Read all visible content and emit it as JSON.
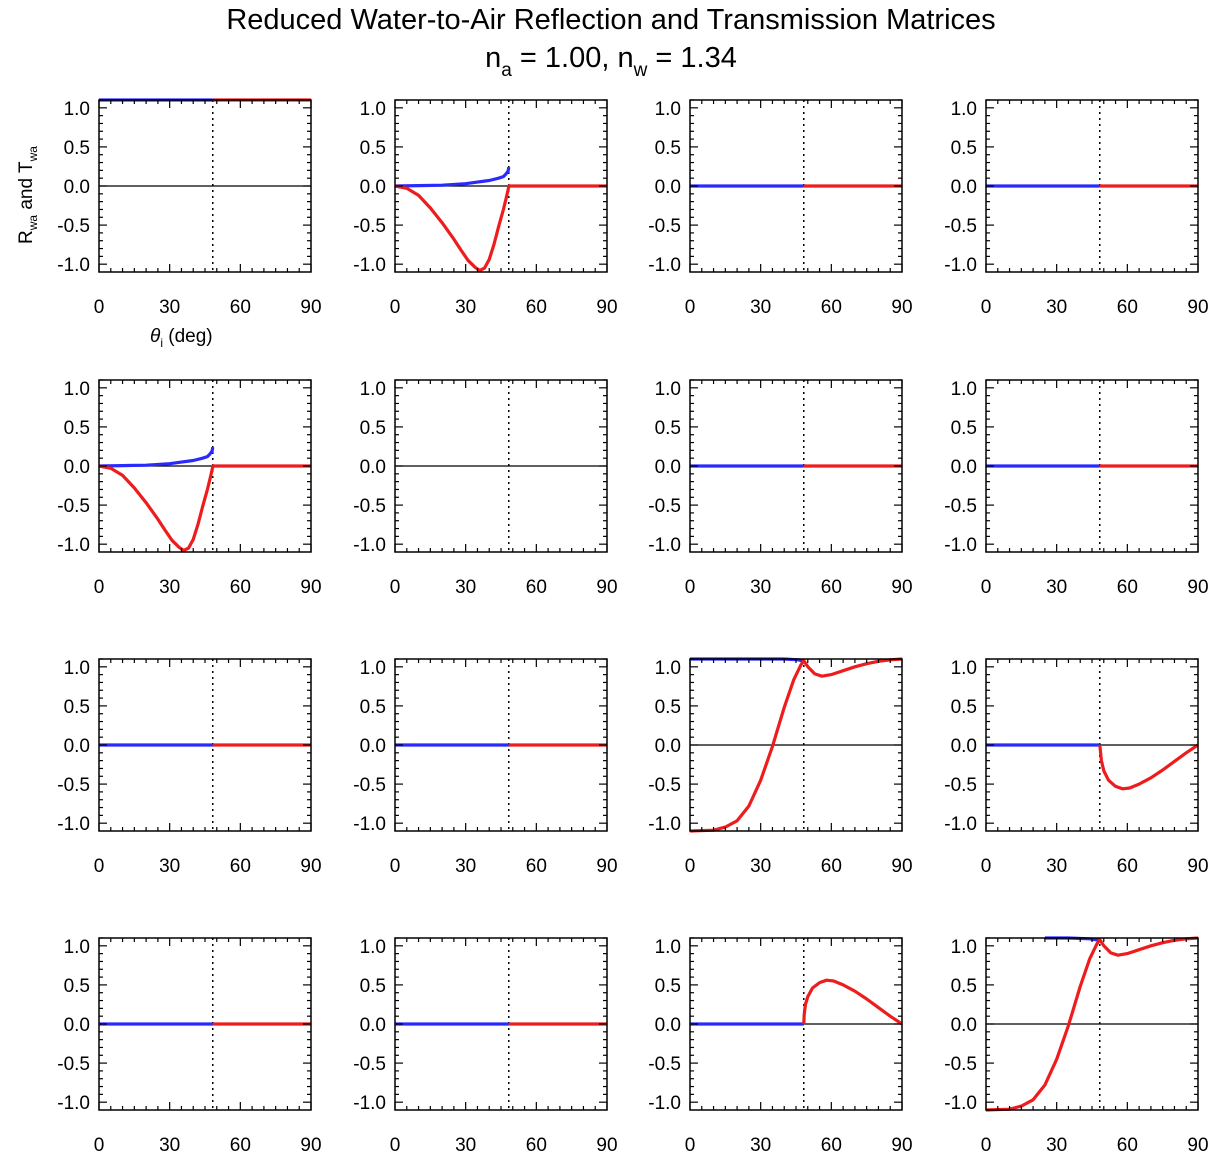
{
  "title": {
    "line1": "Reduced Water-to-Air Reflection and Transmission Matrices",
    "line2": {
      "n_a_symbol": "n",
      "n_a_sub": "a",
      "n_a_value": " = 1.00, ",
      "n_w_symbol": "n",
      "n_w_sub": "w",
      "n_w_value": " = 1.34"
    }
  },
  "axis_labels": {
    "y": {
      "R_symbol": "R",
      "R_sub": "wa",
      "and": " and ",
      "T_symbol": "T",
      "T_sub": "wa"
    },
    "x": {
      "theta_symbol": "θ",
      "theta_sub": "i",
      "unit": " (deg)"
    }
  },
  "colors": {
    "reflection": "#2a2aff",
    "transmission": "#ee1c1c",
    "axis": "#000000",
    "critical_line": "#000000"
  },
  "chart_data": {
    "type": "line",
    "layout": "4x4 small multiples",
    "xlim": [
      0,
      90
    ],
    "ylim": [
      -1.1,
      1.1
    ],
    "x_ticks": [
      "0",
      "30",
      "60",
      "90"
    ],
    "y_ticks": [
      "1.0",
      "0.5",
      "0.0",
      "-0.5",
      "-1.0"
    ],
    "critical_angle_deg": 48.3,
    "grid": false,
    "legend": "none",
    "panels": [
      {
        "row": 1,
        "col": 1,
        "series": [
          {
            "color": "reflection",
            "x": [
              0,
              48.3
            ],
            "y": [
              1.1,
              1.1
            ]
          },
          {
            "color": "transmission",
            "x": [
              48.3,
              90
            ],
            "y": [
              1.1,
              1.1
            ]
          }
        ]
      },
      {
        "row": 1,
        "col": 2,
        "series": [
          {
            "color": "reflection",
            "x": [
              0,
              10,
              20,
              30,
              35,
              40,
              44,
              46,
              47,
              48,
              48.3
            ],
            "y": [
              0,
              0.005,
              0.01,
              0.03,
              0.05,
              0.07,
              0.1,
              0.12,
              0.15,
              0.19,
              0.24
            ]
          },
          {
            "color": "transmission",
            "x": [
              0,
              5,
              10,
              15,
              20,
              25,
              28,
              31,
              34,
              36,
              38,
              40,
              42,
              44,
              46,
              47,
              48,
              48.3,
              90
            ],
            "y": [
              0,
              -0.03,
              -0.12,
              -0.28,
              -0.47,
              -0.68,
              -0.82,
              -0.95,
              -1.04,
              -1.08,
              -1.05,
              -0.94,
              -0.75,
              -0.52,
              -0.3,
              -0.18,
              -0.05,
              0,
              0
            ]
          }
        ]
      },
      {
        "row": 1,
        "col": 3,
        "series": [
          {
            "color": "reflection",
            "x": [
              0,
              48.3
            ],
            "y": [
              0,
              0
            ]
          },
          {
            "color": "transmission",
            "x": [
              48.3,
              90
            ],
            "y": [
              0,
              0
            ]
          }
        ]
      },
      {
        "row": 1,
        "col": 4,
        "series": [
          {
            "color": "reflection",
            "x": [
              0,
              48.3
            ],
            "y": [
              0,
              0
            ]
          },
          {
            "color": "transmission",
            "x": [
              48.3,
              90
            ],
            "y": [
              0,
              0
            ]
          }
        ]
      },
      {
        "row": 2,
        "col": 1,
        "series": [
          {
            "color": "reflection",
            "x": [
              0,
              10,
              20,
              30,
              35,
              40,
              44,
              46,
              47,
              48,
              48.3
            ],
            "y": [
              0,
              0.005,
              0.01,
              0.03,
              0.05,
              0.07,
              0.1,
              0.12,
              0.15,
              0.19,
              0.24
            ]
          },
          {
            "color": "transmission",
            "x": [
              0,
              5,
              10,
              15,
              20,
              25,
              28,
              31,
              34,
              36,
              38,
              40,
              42,
              44,
              46,
              47,
              48,
              48.3,
              90
            ],
            "y": [
              0,
              -0.03,
              -0.12,
              -0.28,
              -0.47,
              -0.68,
              -0.82,
              -0.95,
              -1.04,
              -1.08,
              -1.05,
              -0.94,
              -0.75,
              -0.52,
              -0.3,
              -0.18,
              -0.05,
              0,
              0
            ]
          }
        ]
      },
      {
        "row": 2,
        "col": 2,
        "series": []
      },
      {
        "row": 2,
        "col": 3,
        "series": [
          {
            "color": "reflection",
            "x": [
              0,
              48.3
            ],
            "y": [
              0,
              0
            ]
          },
          {
            "color": "transmission",
            "x": [
              48.3,
              90
            ],
            "y": [
              0,
              0
            ]
          }
        ]
      },
      {
        "row": 2,
        "col": 4,
        "series": [
          {
            "color": "reflection",
            "x": [
              0,
              48.3
            ],
            "y": [
              0,
              0
            ]
          },
          {
            "color": "transmission",
            "x": [
              48.3,
              90
            ],
            "y": [
              0,
              0
            ]
          }
        ]
      },
      {
        "row": 3,
        "col": 1,
        "series": [
          {
            "color": "reflection",
            "x": [
              0,
              48.3
            ],
            "y": [
              0,
              0
            ]
          },
          {
            "color": "transmission",
            "x": [
              48.3,
              90
            ],
            "y": [
              0,
              0
            ]
          }
        ]
      },
      {
        "row": 3,
        "col": 2,
        "series": [
          {
            "color": "reflection",
            "x": [
              0,
              48.3
            ],
            "y": [
              0,
              0
            ]
          },
          {
            "color": "transmission",
            "x": [
              48.3,
              90
            ],
            "y": [
              0,
              0
            ]
          }
        ]
      },
      {
        "row": 3,
        "col": 3,
        "series": [
          {
            "color": "reflection",
            "x": [
              0,
              20,
              40,
              46,
              48.3
            ],
            "y": [
              1.1,
              1.1,
              1.1,
              1.09,
              1.07
            ]
          },
          {
            "color": "transmission",
            "x": [
              0,
              10,
              15,
              20,
              25,
              30,
              35,
              40,
              44,
              47,
              48.3,
              50,
              53,
              56,
              60,
              65,
              70,
              75,
              80,
              85,
              90
            ],
            "y": [
              -1.1,
              -1.09,
              -1.05,
              -0.97,
              -0.78,
              -0.45,
              -0.02,
              0.48,
              0.83,
              1.02,
              1.08,
              1.0,
              0.91,
              0.88,
              0.9,
              0.95,
              1.0,
              1.04,
              1.07,
              1.09,
              1.1
            ]
          }
        ]
      },
      {
        "row": 3,
        "col": 4,
        "series": [
          {
            "color": "reflection",
            "x": [
              0,
              48.3
            ],
            "y": [
              0,
              0
            ]
          },
          {
            "color": "transmission",
            "x": [
              48.3,
              49,
              50,
              52,
              55,
              58,
              61,
              65,
              70,
              75,
              80,
              85,
              90
            ],
            "y": [
              0,
              -0.2,
              -0.33,
              -0.45,
              -0.53,
              -0.56,
              -0.55,
              -0.5,
              -0.42,
              -0.32,
              -0.21,
              -0.1,
              0
            ]
          }
        ]
      },
      {
        "row": 4,
        "col": 1,
        "series": [
          {
            "color": "reflection",
            "x": [
              0,
              48.3
            ],
            "y": [
              0,
              0
            ]
          },
          {
            "color": "transmission",
            "x": [
              48.3,
              90
            ],
            "y": [
              0,
              0
            ]
          }
        ]
      },
      {
        "row": 4,
        "col": 2,
        "series": [
          {
            "color": "reflection",
            "x": [
              0,
              48.3
            ],
            "y": [
              0,
              0
            ]
          },
          {
            "color": "transmission",
            "x": [
              48.3,
              90
            ],
            "y": [
              0,
              0
            ]
          }
        ]
      },
      {
        "row": 4,
        "col": 3,
        "series": [
          {
            "color": "reflection",
            "x": [
              0,
              48.3
            ],
            "y": [
              0,
              0
            ]
          },
          {
            "color": "transmission",
            "x": [
              48.3,
              48.5,
              49,
              50,
              52,
              55,
              58,
              61,
              65,
              70,
              75,
              80,
              85,
              90
            ],
            "y": [
              0,
              0.12,
              0.25,
              0.35,
              0.46,
              0.53,
              0.56,
              0.55,
              0.5,
              0.42,
              0.32,
              0.21,
              0.1,
              0
            ]
          }
        ]
      },
      {
        "row": 4,
        "col": 4,
        "series": [
          {
            "color": "reflection",
            "x": [
              25,
              35,
              44,
              48.3
            ],
            "y": [
              1.1,
              1.1,
              1.09,
              1.07
            ]
          },
          {
            "color": "transmission",
            "x": [
              0,
              10,
              15,
              20,
              25,
              30,
              35,
              40,
              44,
              47,
              48.3,
              50,
              53,
              56,
              60,
              65,
              70,
              75,
              80,
              85,
              90
            ],
            "y": [
              -1.1,
              -1.09,
              -1.05,
              -0.97,
              -0.78,
              -0.45,
              -0.02,
              0.48,
              0.83,
              1.02,
              1.08,
              1.0,
              0.91,
              0.88,
              0.9,
              0.95,
              1.0,
              1.04,
              1.07,
              1.09,
              1.1
            ]
          }
        ]
      }
    ]
  }
}
